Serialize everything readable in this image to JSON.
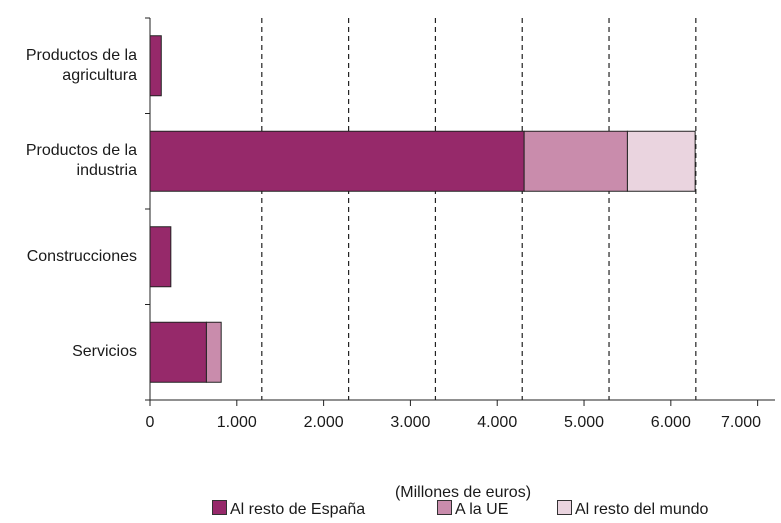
{
  "chart_data": {
    "type": "bar",
    "orientation": "horizontal",
    "stacked": true,
    "categories": [
      "Productos de la agricultura",
      "Productos de la industria",
      "Construcciones",
      "Servicios"
    ],
    "category_labels": [
      [
        "Productos de la",
        "agricultura"
      ],
      [
        "Productos de la",
        "industria"
      ],
      [
        "Construcciones"
      ],
      [
        "Servicios"
      ]
    ],
    "series": [
      {
        "name": "Al resto de España",
        "color": "#96296a",
        "values": [
          130,
          4310,
          240,
          650
        ]
      },
      {
        "name": "A la UE",
        "color": "#c98cac",
        "values": [
          0,
          1190,
          0,
          170
        ]
      },
      {
        "name": "Al resto del mundo",
        "color": "#ead4df",
        "values": [
          0,
          780,
          0,
          0
        ]
      }
    ],
    "xlabel": "(Millones de euros)",
    "xlim": [
      0,
      7200
    ],
    "xticks": [
      0,
      1000,
      2000,
      3000,
      4000,
      5000,
      6000,
      7000
    ],
    "xtick_labels": [
      "0",
      "1.000",
      "2.000",
      "3.000",
      "4.000",
      "5.000",
      "6.000",
      "7.000"
    ],
    "grid": "vertical dashed",
    "legend": "bottom"
  }
}
